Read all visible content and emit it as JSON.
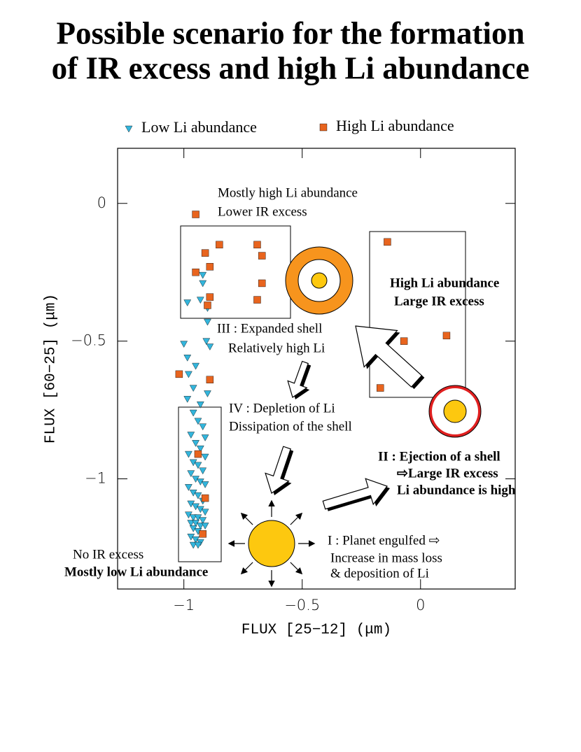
{
  "chart_data": {
    "type": "scatter",
    "title": [
      "Possible scenario for the formation",
      "of IR excess and high Li abundance"
    ],
    "x_label": "FLUX  [25−12] (μm)",
    "y_label": "FLUX  [60−25] (μm)",
    "xlim": [
      -1.28,
      0.4
    ],
    "ylim": [
      -1.4,
      0.2
    ],
    "xticks": [
      {
        "value": -1,
        "label": "−1"
      },
      {
        "value": -0.5,
        "label": "−0.5"
      },
      0
    ],
    "yticks": [
      0,
      {
        "value": -0.5,
        "label": "−0.5"
      },
      {
        "value": -1,
        "label": "−1"
      }
    ],
    "series": [
      {
        "name": "Low Li abundance",
        "color": "#33b5dc",
        "marker": "triangle",
        "x": [
          -0.985,
          -0.92,
          -0.92,
          -0.93,
          -0.9,
          -0.9,
          -1.0,
          -0.905,
          -0.89,
          -0.985,
          -0.95,
          -0.98,
          -0.9,
          -0.96,
          -0.985,
          -0.93,
          -0.96,
          -0.94,
          -0.92,
          -0.97,
          -0.91,
          -0.95,
          -0.93,
          -0.98,
          -0.91,
          -0.96,
          -0.94,
          -0.92,
          -0.97,
          -0.95,
          -0.93,
          -0.91,
          -0.98,
          -0.96,
          -0.94,
          -0.92,
          -0.97,
          -0.95,
          -0.93,
          -0.91,
          -0.98,
          -0.96,
          -0.94,
          -0.92,
          -0.97,
          -0.95,
          -0.93,
          -0.91,
          -0.96,
          -0.94,
          -0.92,
          -0.97,
          -0.95,
          -0.93,
          -0.96,
          -0.94
        ],
        "values": [
          -0.36,
          -0.26,
          -0.29,
          -0.35,
          -0.43,
          -0.38,
          -0.51,
          -0.5,
          -0.52,
          -0.56,
          -0.59,
          -0.62,
          -0.69,
          -0.67,
          -0.71,
          -0.73,
          -0.76,
          -0.79,
          -0.81,
          -0.84,
          -0.85,
          -0.87,
          -0.89,
          -0.91,
          -0.92,
          -0.94,
          -0.95,
          -0.97,
          -0.98,
          -1.0,
          -1.01,
          -1.02,
          -1.03,
          -1.05,
          -1.06,
          -1.08,
          -1.09,
          -1.1,
          -1.11,
          -1.12,
          -1.13,
          -1.14,
          -1.14,
          -1.15,
          -1.16,
          -1.16,
          -1.17,
          -1.17,
          -1.18,
          -1.19,
          -1.2,
          -1.21,
          -1.22,
          -1.23,
          -1.24,
          -1.24
        ]
      },
      {
        "name": "High Li abundance",
        "color": "#e8641e",
        "marker": "square",
        "x": [
          -0.95,
          -0.91,
          -0.85,
          -0.89,
          -0.95,
          -0.89,
          -0.9,
          -0.69,
          -0.67,
          -0.67,
          -0.69,
          -0.14,
          -0.07,
          0.11,
          -0.17,
          -1.02,
          -0.89,
          -0.94,
          -0.91,
          -0.92
        ],
        "values": [
          -0.04,
          -0.18,
          -0.15,
          -0.23,
          -0.25,
          -0.34,
          -0.37,
          -0.15,
          -0.19,
          -0.29,
          -0.35,
          -0.14,
          -0.5,
          -0.48,
          -0.67,
          -0.62,
          -0.64,
          -0.91,
          -1.07,
          -1.2
        ]
      }
    ],
    "annotations": [
      "Mostly high Li abundance",
      "Lower IR excess",
      "High Li abundance",
      "Large IR excess",
      "III : Expanded shell",
      "Relatively high Li",
      "IV : Depletion of Li",
      "Dissipation of the shell",
      "II : Ejection of a shell",
      "⇨Large IR excess",
      "Li abundance is high",
      "I : Planet engulfed ⇨",
      "Increase in mass loss",
      "& deposition of Li",
      "No IR excess",
      "Mostly  low Li abundance"
    ]
  }
}
